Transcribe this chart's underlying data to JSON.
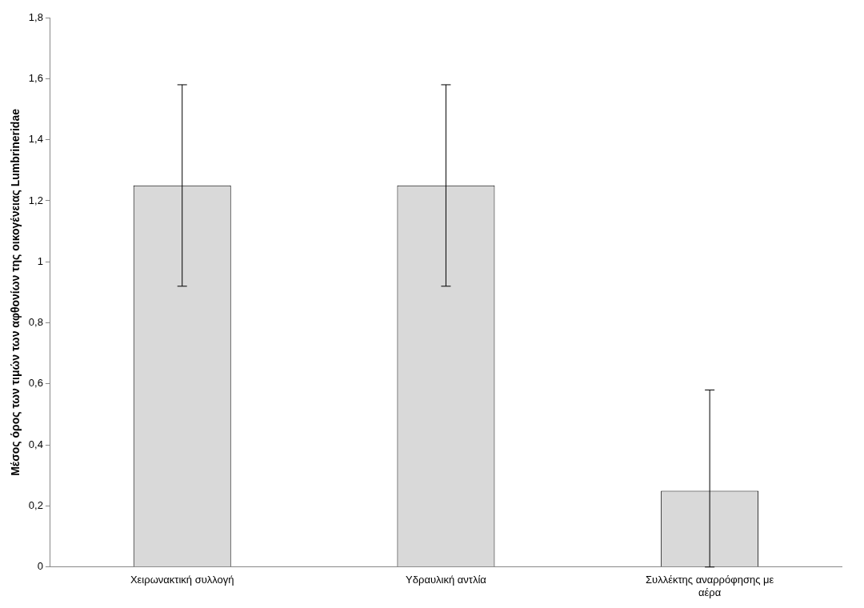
{
  "chart_data": {
    "type": "bar",
    "ylabel": "Μέσος όρος των τιμών των αφθονίων της οικογένειας Lumbrineridae",
    "categories": [
      "Χειρωνακτική συλλογή",
      "Υδραυλική αντλία",
      "Συλλέκτης αναρρόφησης με αέρα"
    ],
    "values": [
      1.25,
      1.25,
      0.25
    ],
    "errors": [
      0.33,
      0.33,
      [
        0,
        0.58
      ]
    ],
    "color": "#d9d9d9",
    "ylim": [
      0,
      1.8
    ],
    "yticks": [
      0,
      {
        "value": 0.2,
        "label": "0,2"
      },
      {
        "value": 0.4,
        "label": "0,4"
      },
      {
        "value": 0.6,
        "label": "0,6"
      },
      {
        "value": 0.8,
        "label": "0,8"
      },
      1,
      {
        "value": 1.2,
        "label": "1,2"
      },
      {
        "value": 1.4,
        "label": "1,4"
      },
      {
        "value": 1.6,
        "label": "1,6"
      },
      {
        "value": 1.8,
        "label": "1,8"
      }
    ],
    "grid": false,
    "legend": false
  }
}
